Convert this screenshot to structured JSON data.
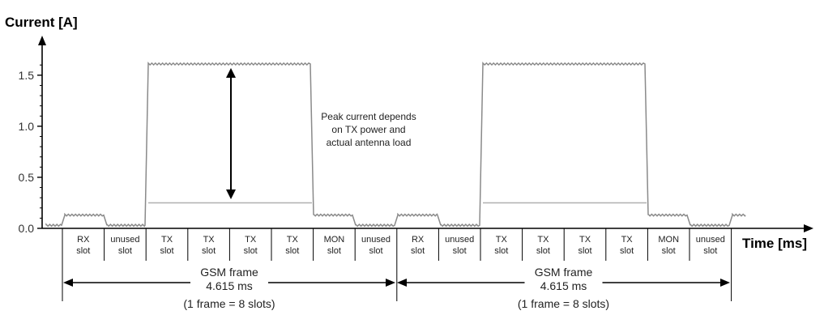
{
  "chart_data": {
    "type": "line",
    "title": "",
    "ylabel": "Current [A]",
    "xlabel": "Time [ms]",
    "ylim": [
      0,
      1.7
    ],
    "y_ticks": [
      "0.0",
      "0.5",
      "1.0",
      "1.5"
    ],
    "y_tick_values": [
      0.0,
      0.5,
      1.0,
      1.5
    ],
    "grid": false,
    "slots": [
      "RX\nslot",
      "unused\nslot",
      "TX\nslot",
      "TX\nslot",
      "TX\nslot",
      "TX\nslot",
      "MON\nslot",
      "unused\nslot",
      "RX\nslot",
      "unused\nslot",
      "TX\nslot",
      "TX\nslot",
      "TX\nslot",
      "TX\nslot",
      "MON\nslot",
      "unused\nslot"
    ],
    "series": [
      {
        "style": "max",
        "slot_levels": [
          0.03,
          0.13,
          0.03,
          1.61,
          1.61,
          1.61,
          1.61,
          0.13,
          0.03,
          0.13,
          0.03,
          1.61,
          1.61,
          1.61,
          1.61,
          0.13,
          0.03,
          0.13
        ]
      },
      {
        "style": "min",
        "slot_levels": [
          0.25,
          0.25
        ]
      }
    ],
    "frames": [
      {
        "line1": "GSM frame",
        "line2": "4.615 ms",
        "line3": "(1 frame = 8 slots)"
      },
      {
        "line1": "GSM frame",
        "line2": "4.615 ms",
        "line3": "(1 frame = 8 slots)"
      }
    ],
    "annotation": [
      "Peak current depends",
      "on TX power and",
      "actual antenna load"
    ],
    "colors": {
      "trace": "#8a8a8a",
      "trace_low": "#b0b0b0",
      "axis": "#000000"
    }
  }
}
